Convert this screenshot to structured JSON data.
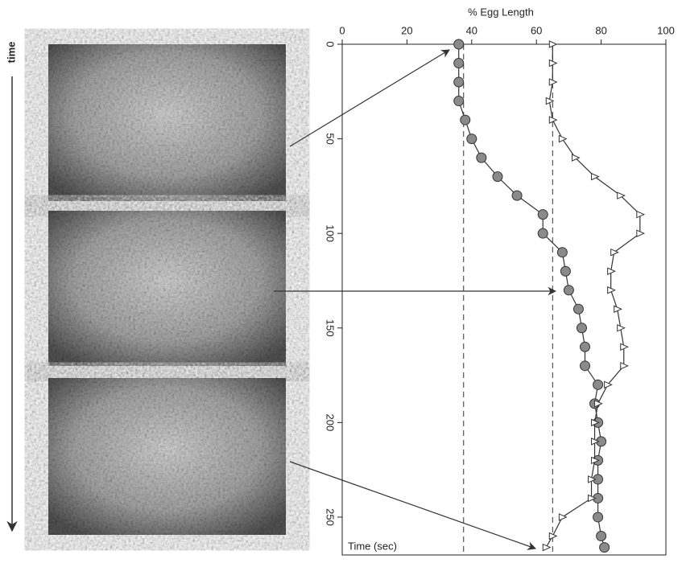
{
  "chart_data": {
    "type": "line",
    "title": "% Egg Length",
    "x_label": "Time (sec)",
    "side_label": "time",
    "x": [
      0,
      10,
      20,
      30,
      40,
      50,
      60,
      70,
      80,
      90,
      100,
      110,
      120,
      130,
      140,
      150,
      160,
      170,
      180,
      190,
      200,
      210,
      220,
      230,
      240,
      250,
      260,
      266
    ],
    "series": [
      {
        "color": "#8a8a8a",
        "marker": "circle",
        "values": [
          36,
          36,
          36,
          36,
          38,
          40,
          43,
          48,
          54,
          62,
          62,
          68,
          69,
          70,
          73,
          74,
          75,
          75,
          79,
          78,
          79,
          80,
          79,
          79,
          79,
          79,
          80,
          81
        ]
      },
      {
        "color": "#ffffff",
        "marker": "triangle",
        "values": [
          65,
          65,
          65,
          64,
          65,
          68,
          72,
          78,
          86,
          92,
          92,
          84,
          83,
          83,
          85,
          86,
          87,
          87,
          82,
          79,
          78,
          78,
          78,
          77,
          77,
          68,
          65,
          63
        ]
      }
    ],
    "reference_lines": [
      37.5,
      65
    ],
    "xlim": [
      0,
      270
    ],
    "xticks": [
      0,
      50,
      100,
      150,
      200,
      250
    ],
    "ylim": [
      0,
      100
    ],
    "yticks": [
      0,
      20,
      40,
      60,
      80,
      100
    ]
  }
}
